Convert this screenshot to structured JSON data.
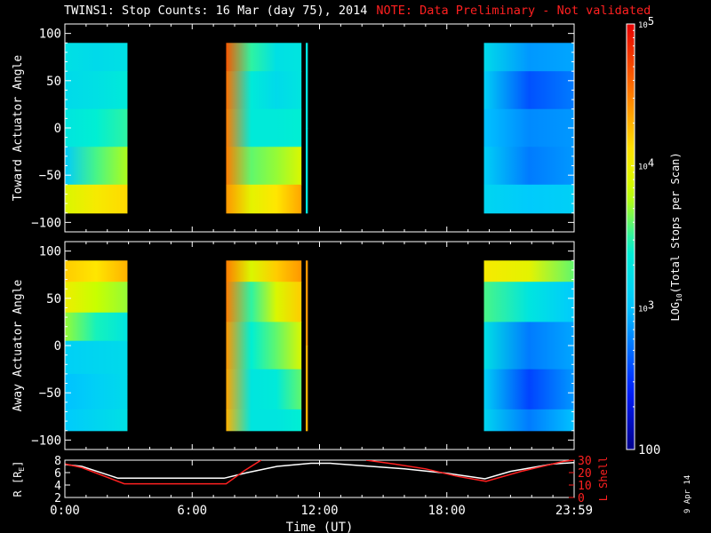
{
  "title": {
    "main": "TWINS1: Stop Counts: 16 Mar (day  75), 2014",
    "note": "NOTE: Data Preliminary - Not validated"
  },
  "date_stamp": "9 Apr 14",
  "colors": {
    "background": "#000000",
    "axes": "#ffffff",
    "note": "#ff2020",
    "lshell": "#ff2020",
    "radius": "#ffffff"
  },
  "colorbar": {
    "label": "LOG10(Total Stops per Scan)",
    "label_parts": [
      "LOG",
      "10",
      "(Total Stops per Scan)"
    ],
    "colormap": "rainbow (blue-cyan-yellow-red)",
    "scale": "log",
    "range": [
      100,
      100000
    ],
    "ticks": [
      {
        "value": 100000,
        "base": "10",
        "exp": "5",
        "kind": "pow"
      },
      {
        "value": 10000,
        "base": "10",
        "exp": "4",
        "kind": "pow"
      },
      {
        "value": 1000,
        "base": "10",
        "exp": "3",
        "kind": "pow"
      },
      {
        "value": 100,
        "text": "100",
        "kind": "plain"
      }
    ]
  },
  "chart_data": [
    {
      "type": "heatmap",
      "ylabel": "Toward Actuator Angle",
      "ylim": [
        -110,
        110
      ],
      "yticks": [
        100,
        50,
        0,
        -50,
        -100
      ],
      "xlim": [
        0,
        24
      ],
      "segments": [
        {
          "t0": 0.0,
          "t1": 2.95,
          "rows": [
            {
              "angle": 80,
              "log10": [
                3.25,
                3.2,
                3.25
              ]
            },
            {
              "angle": 40,
              "log10": [
                3.2,
                3.25,
                3.35
              ]
            },
            {
              "angle": 0,
              "log10": [
                3.3,
                3.4,
                3.5
              ]
            },
            {
              "angle": -40,
              "log10": [
                3.05,
                3.55,
                3.75
              ]
            },
            {
              "angle": -80,
              "log10": [
                3.9,
                4.05,
                4.15
              ]
            }
          ]
        },
        {
          "t0": 7.6,
          "t1": 11.15,
          "rows": [
            {
              "angle": 80,
              "log10": [
                4.65,
                3.5,
                3.25,
                3.3
              ]
            },
            {
              "angle": 40,
              "log10": [
                4.55,
                3.35,
                3.2,
                3.3
              ]
            },
            {
              "angle": 0,
              "log10": [
                4.5,
                3.35,
                3.35,
                3.4
              ]
            },
            {
              "angle": -40,
              "log10": [
                4.5,
                3.6,
                3.7,
                3.9
              ]
            },
            {
              "angle": -80,
              "log10": [
                4.4,
                3.95,
                4.1,
                4.35
              ]
            }
          ]
        },
        {
          "t0": 11.35,
          "t1": 11.45,
          "rows": [
            {
              "angle": 80,
              "log10": [
                3.3
              ]
            },
            {
              "angle": -80,
              "log10": [
                3.3
              ]
            }
          ]
        },
        {
          "t0": 19.75,
          "t1": 24.0,
          "rows": [
            {
              "angle": 80,
              "log10": [
                3.2,
                2.85,
                2.9
              ]
            },
            {
              "angle": 40,
              "log10": [
                3.1,
                2.6,
                2.75
              ]
            },
            {
              "angle": 0,
              "log10": [
                3.0,
                2.8,
                2.85
              ]
            },
            {
              "angle": -40,
              "log10": [
                3.1,
                2.75,
                2.85
              ]
            },
            {
              "angle": -80,
              "log10": [
                3.15,
                3.05,
                3.1
              ]
            }
          ]
        }
      ]
    },
    {
      "type": "heatmap",
      "ylabel": "Away Actuator Angle",
      "ylim": [
        -110,
        110
      ],
      "yticks": [
        100,
        50,
        0,
        -50,
        -100
      ],
      "xlim": [
        0,
        24
      ],
      "segments": [
        {
          "t0": 0.0,
          "t1": 2.95,
          "rows": [
            {
              "angle": 85,
              "log10": [
                4.2,
                4.1,
                4.3
              ]
            },
            {
              "angle": 50,
              "log10": [
                4.0,
                3.8,
                3.7
              ]
            },
            {
              "angle": 20,
              "log10": [
                3.7,
                3.45,
                3.3
              ]
            },
            {
              "angle": -10,
              "log10": [
                3.1,
                3.15,
                3.2
              ]
            },
            {
              "angle": -50,
              "log10": [
                3.0,
                3.1,
                3.2
              ]
            },
            {
              "angle": -85,
              "log10": [
                3.05,
                3.15,
                3.25
              ]
            }
          ]
        },
        {
          "t0": 7.6,
          "t1": 11.15,
          "rows": [
            {
              "angle": 85,
              "log10": [
                4.5,
                3.9,
                4.2,
                4.4
              ]
            },
            {
              "angle": 50,
              "log10": [
                4.5,
                3.5,
                3.9,
                4.2
              ]
            },
            {
              "angle": 0,
              "log10": [
                4.4,
                3.4,
                3.6,
                3.9
              ]
            },
            {
              "angle": -50,
              "log10": [
                4.35,
                3.3,
                3.35,
                3.6
              ]
            },
            {
              "angle": -85,
              "log10": [
                4.3,
                3.3,
                3.3,
                3.4
              ]
            }
          ]
        },
        {
          "t0": 11.35,
          "t1": 11.45,
          "rows": [
            {
              "angle": 80,
              "log10": [
                4.4
              ]
            },
            {
              "angle": -80,
              "log10": [
                4.3
              ]
            }
          ]
        },
        {
          "t0": 19.75,
          "t1": 24.0,
          "rows": [
            {
              "angle": 85,
              "log10": [
                4.05,
                3.95,
                3.6
              ]
            },
            {
              "angle": 50,
              "log10": [
                3.55,
                3.3,
                3.05
              ]
            },
            {
              "angle": 0,
              "log10": [
                3.25,
                2.75,
                2.9
              ]
            },
            {
              "angle": -50,
              "log10": [
                3.1,
                2.55,
                2.85
              ]
            },
            {
              "angle": -85,
              "log10": [
                3.15,
                2.75,
                3.0
              ]
            }
          ]
        }
      ]
    },
    {
      "type": "line",
      "xlabel": "Time (UT)",
      "xticks": [
        {
          "t": 0,
          "label": "0:00"
        },
        {
          "t": 6,
          "label": "6:00"
        },
        {
          "t": 12,
          "label": "12:00"
        },
        {
          "t": 18,
          "label": "18:00"
        },
        {
          "t": 24,
          "label": "23:59"
        }
      ],
      "xlim": [
        0,
        24
      ],
      "left_axis": {
        "label": "R [R",
        "label_sub": "E",
        "label_end": "]",
        "ylim": [
          2,
          8
        ],
        "yticks": [
          2,
          4,
          6,
          8
        ]
      },
      "right_axis": {
        "label": "L Shell",
        "ylim": [
          0,
          30
        ],
        "yticks": [
          0,
          10,
          20,
          30
        ]
      },
      "series": [
        {
          "axis": "left",
          "x": [
            0,
            0.8,
            2.5,
            4.5,
            7.5,
            8.6,
            10.0,
            11.6,
            12.5,
            14,
            16,
            18,
            19.8,
            21,
            23,
            24
          ],
          "y": [
            7.3,
            7.0,
            5.1,
            5.1,
            5.1,
            6.0,
            7.0,
            7.5,
            7.5,
            7.1,
            6.6,
            5.9,
            5.0,
            6.2,
            7.4,
            7.6
          ]
        },
        {
          "axis": "right",
          "x": [
            0,
            0.8,
            2.8,
            4.5,
            7.6,
            8.5,
            9.25
          ],
          "y": [
            27,
            24,
            11,
            11,
            11,
            22,
            30
          ]
        },
        {
          "axis": "right",
          "x": [
            14.2,
            15.5,
            17,
            18.5,
            19.85,
            21.5,
            23.5,
            24
          ],
          "y": [
            30,
            27,
            23,
            17,
            13,
            21,
            29,
            30
          ]
        }
      ]
    }
  ]
}
